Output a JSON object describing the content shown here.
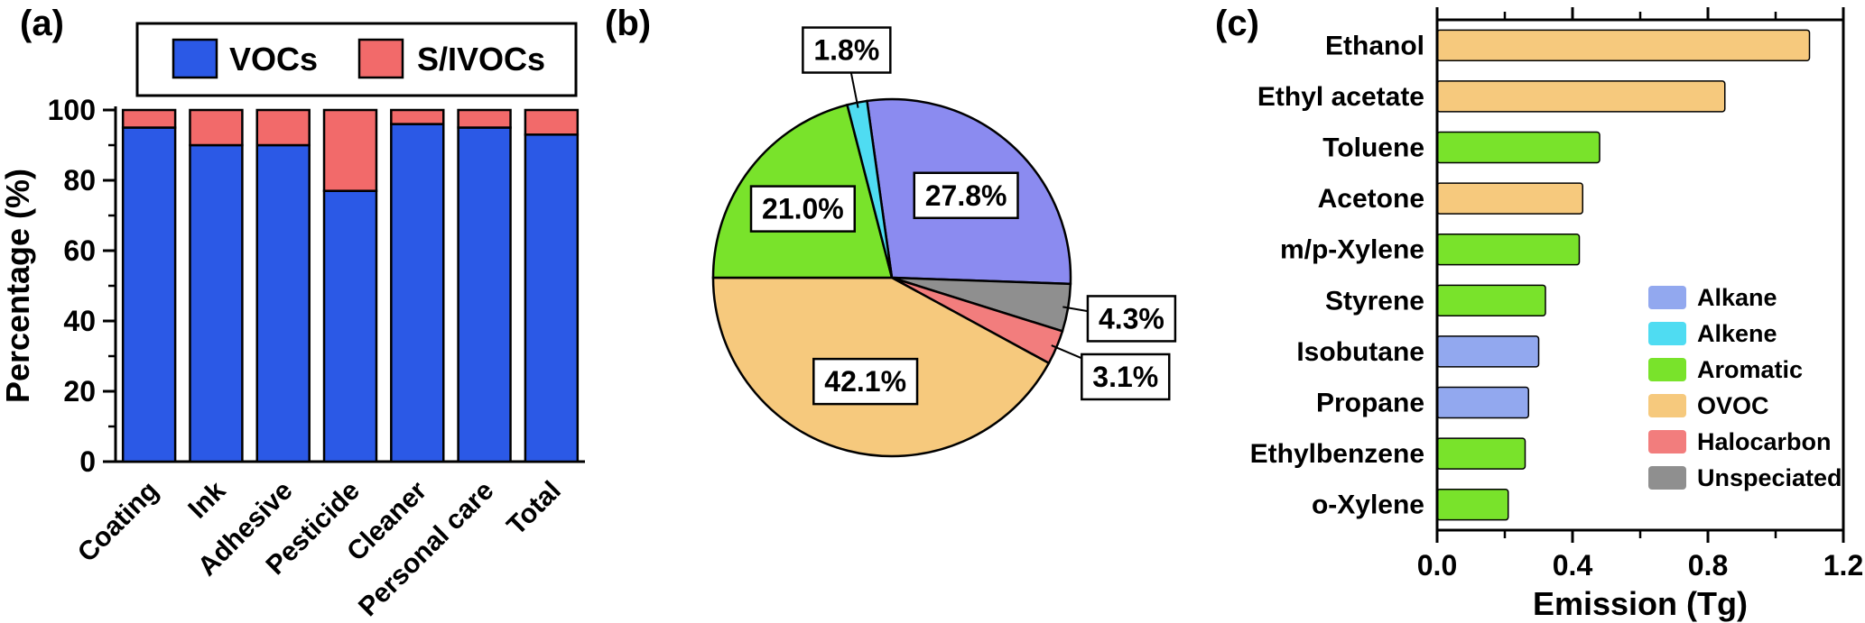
{
  "figure": {
    "background": "#ffffff",
    "panels": [
      {
        "label": "(a)"
      },
      {
        "label": "(b)"
      },
      {
        "label": "(c)"
      }
    ]
  },
  "palette": {
    "vocs": "#2b59e6",
    "sivocs": "#f26a6a",
    "alkane_pie": "#8b8bf0",
    "alkane_bar": "#92a8ef",
    "alkene": "#4fdcf2",
    "aromatic": "#79e32b",
    "ovoc": "#f6c97d",
    "halocarbon": "#f27d7d",
    "unspeciated": "#8f8f8f",
    "axis": "#000000",
    "label_box_bg": "#ffffff"
  },
  "chart_data": [
    {
      "panel_label": "(a)",
      "type": "bar",
      "stacked": true,
      "categories": [
        "Coating",
        "Ink",
        "Adhesive",
        "Pesticide",
        "Cleaner",
        "Personal care",
        "Total"
      ],
      "series": [
        {
          "name": "VOCs",
          "color_key": "vocs",
          "values": [
            95,
            90,
            90,
            77,
            96,
            95,
            93
          ]
        },
        {
          "name": "S/IVOCs",
          "color_key": "sivocs",
          "values": [
            5,
            10,
            10,
            23,
            4,
            5,
            7
          ]
        }
      ],
      "ylabel": "Percentage (%)",
      "ylim": [
        0,
        100
      ],
      "yticks": [
        0,
        20,
        40,
        60,
        80,
        100
      ],
      "legend_position": "top",
      "grid": false
    },
    {
      "panel_label": "(b)",
      "type": "pie",
      "start_angle_deg": -8,
      "slices": [
        {
          "name": "Alkane",
          "value": 27.8,
          "label": "27.8%",
          "color_key": "alkane_pie",
          "placement": "inside",
          "label_r": 0.62
        },
        {
          "name": "Unspeciated",
          "value": 4.3,
          "label": "4.3%",
          "color_key": "unspeciated",
          "placement": "outside",
          "label_r": 1.36
        },
        {
          "name": "Halocarbon",
          "value": 3.1,
          "label": "3.1%",
          "color_key": "halocarbon",
          "placement": "outside",
          "label_r": 1.42
        },
        {
          "name": "OVOC",
          "value": 42.1,
          "label": "42.1%",
          "color_key": "ovoc",
          "placement": "inside",
          "label_r": 0.6
        },
        {
          "name": "Aromatic",
          "value": 21.0,
          "label": "21.0%",
          "color_key": "aromatic",
          "placement": "inside",
          "label_r": 0.63
        },
        {
          "name": "Alkene",
          "value": 1.8,
          "label": "1.8%",
          "color_key": "alkene",
          "placement": "outside",
          "label_r": 1.3
        }
      ]
    },
    {
      "panel_label": "(c)",
      "type": "barh",
      "categories": [
        "Ethanol",
        "Ethyl acetate",
        "Toluene",
        "Acetone",
        "m/p-Xylene",
        "Styrene",
        "Isobutane",
        "Propane",
        "Ethylbenzene",
        "o-Xylene"
      ],
      "values": [
        1.1,
        0.85,
        0.48,
        0.43,
        0.42,
        0.32,
        0.3,
        0.27,
        0.26,
        0.21
      ],
      "color_keys": [
        "ovoc",
        "ovoc",
        "aromatic",
        "ovoc",
        "aromatic",
        "aromatic",
        "alkane_bar",
        "alkane_bar",
        "aromatic",
        "aromatic"
      ],
      "xlabel": "Emission (Tg)",
      "xlim": [
        0,
        1.2
      ],
      "xticks": [
        0,
        0.4,
        0.8,
        1.2
      ],
      "xtick_labels": [
        "0.0",
        "0.4",
        "0.8",
        "1.2"
      ],
      "minor_xticks": [
        0.2,
        0.6,
        1.0
      ],
      "legend_position": "inside-right",
      "legend": [
        {
          "label": "Alkane",
          "color_key": "alkane_bar"
        },
        {
          "label": "Alkene",
          "color_key": "alkene"
        },
        {
          "label": "Aromatic",
          "color_key": "aromatic"
        },
        {
          "label": "OVOC",
          "color_key": "ovoc"
        },
        {
          "label": "Halocarbon",
          "color_key": "halocarbon"
        },
        {
          "label": "Unspeciated",
          "color_key": "unspeciated"
        }
      ]
    }
  ]
}
